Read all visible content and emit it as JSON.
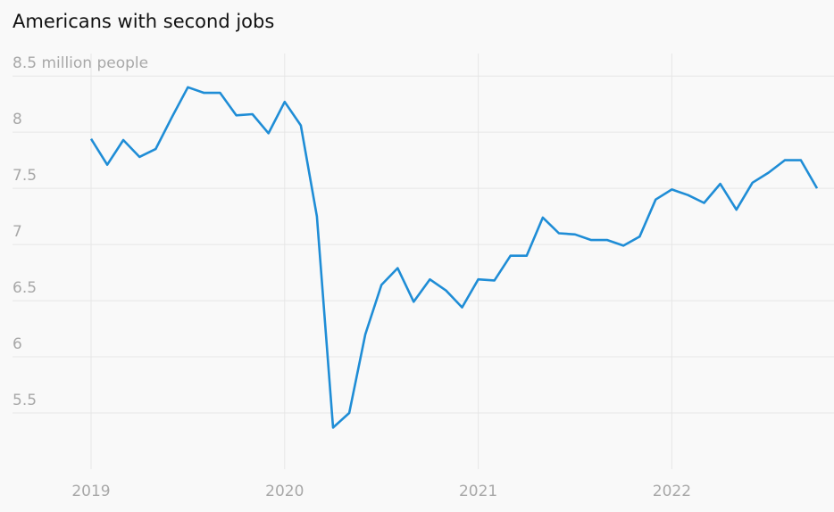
{
  "chart_data": {
    "type": "line",
    "title": "Americans with second jobs",
    "x": [
      "2019-01",
      "2019-02",
      "2019-03",
      "2019-04",
      "2019-05",
      "2019-06",
      "2019-07",
      "2019-08",
      "2019-09",
      "2019-10",
      "2019-11",
      "2019-12",
      "2020-01",
      "2020-02",
      "2020-03",
      "2020-04",
      "2020-05",
      "2020-06",
      "2020-07",
      "2020-08",
      "2020-09",
      "2020-10",
      "2020-11",
      "2020-12",
      "2021-01",
      "2021-02",
      "2021-03",
      "2021-04",
      "2021-05",
      "2021-06",
      "2021-07",
      "2021-08",
      "2021-09",
      "2021-10",
      "2021-11",
      "2021-12",
      "2022-01",
      "2022-02",
      "2022-03",
      "2022-04",
      "2022-05",
      "2022-06",
      "2022-07",
      "2022-08",
      "2022-09",
      "2022-10"
    ],
    "series": [
      {
        "name": "Americans with second jobs",
        "color": "#1f8dd6",
        "values": [
          7.94,
          7.71,
          7.93,
          7.78,
          7.85,
          8.13,
          8.4,
          8.35,
          8.35,
          8.15,
          8.16,
          7.99,
          8.27,
          8.06,
          7.25,
          5.37,
          5.5,
          6.2,
          6.64,
          6.79,
          6.49,
          6.69,
          6.59,
          6.44,
          6.69,
          6.68,
          6.9,
          6.9,
          7.24,
          7.1,
          7.09,
          7.04,
          7.04,
          6.99,
          7.07,
          7.4,
          7.49,
          7.44,
          7.37,
          7.54,
          7.31,
          7.55,
          7.64,
          7.75,
          7.75,
          7.5
        ]
      }
    ],
    "xlim": [
      "2019-01",
      "2022-10"
    ],
    "xticks": [
      {
        "value": "2019-01",
        "label": "2019"
      },
      {
        "value": "2020-01",
        "label": "2020"
      },
      {
        "value": "2021-01",
        "label": "2021"
      },
      {
        "value": "2022-01",
        "label": "2022"
      }
    ],
    "ylim": [
      5.0,
      8.7
    ],
    "yticks": [
      5.5,
      6,
      6.5,
      7,
      7.5,
      8,
      {
        "value": 8.5,
        "label": "8.5 million people"
      }
    ],
    "grid": true
  }
}
